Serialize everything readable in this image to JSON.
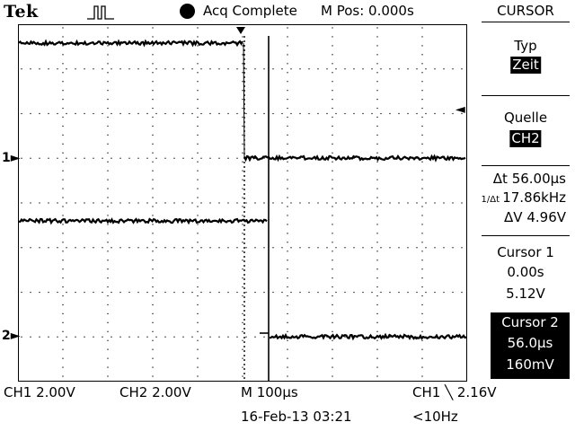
{
  "header": {
    "brand": "Tek",
    "acq_status": "Acq Complete",
    "m_pos": "M Pos: 0.000s"
  },
  "channels": {
    "ch1_marker": "1",
    "ch2_marker": "2"
  },
  "menu": {
    "title": "CURSOR",
    "type_label": "Typ",
    "type_value": "Zeit",
    "source_label": "Quelle",
    "source_value": "CH2",
    "delta_t": "Δt 56.00μs",
    "inv_delta_t": "17.86kHz",
    "delta_v": "ΔV 4.96V",
    "cursor1": {
      "title": "Cursor 1",
      "time": "0.00s",
      "volt": "5.12V"
    },
    "cursor2": {
      "title": "Cursor 2",
      "time": "56.0μs",
      "volt": "160mV"
    }
  },
  "status": {
    "ch1_scale": "CH1  2.00V",
    "ch2_scale": "CH2  2.00V",
    "timebase": "M 100μs",
    "trigger": "CH1 ╲ 2.16V",
    "datetime": "16-Feb-13 03:21",
    "freq": "<10Hz"
  },
  "colors": {
    "background": "#ffffff",
    "trace": "#000000",
    "highlight": "#000000"
  },
  "icons": {
    "trigger_marker": "down-arrow-icon",
    "trigger_level": "left-arrow-icon",
    "acq_indicator": "filled-circle-icon"
  }
}
